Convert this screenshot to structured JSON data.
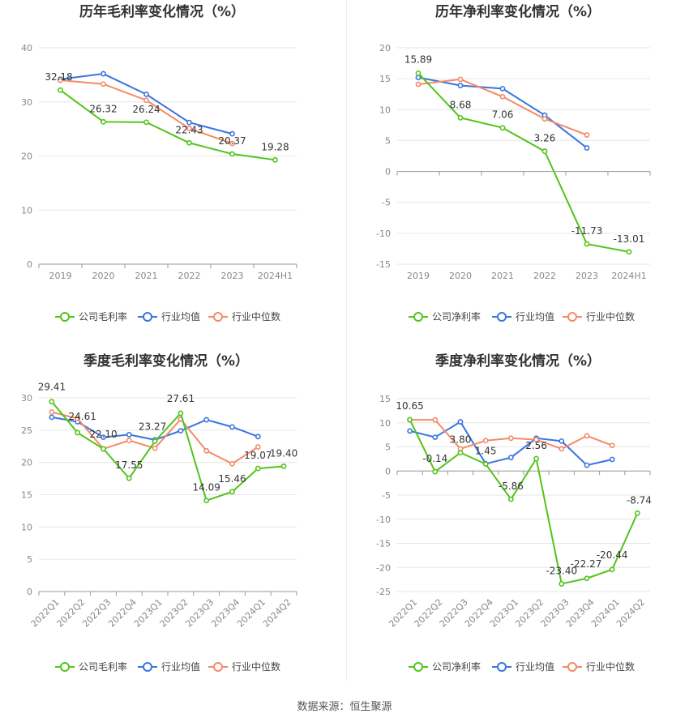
{
  "colors": {
    "company": "#52c41a",
    "industry_avg": "#3a75e0",
    "industry_median": "#f28b68",
    "grid": "#e6e6e6",
    "axis": "#999999"
  },
  "legend": {
    "gross_company": "公司毛利率",
    "net_company": "公司净利率",
    "industry_avg": "行业均值",
    "industry_median": "行业中位数"
  },
  "source_text": "数据来源：恒生聚源",
  "chart_data": [
    {
      "id": "annual-gross",
      "type": "line",
      "title": "历年毛利率变化情况（%）",
      "categories": [
        "2019",
        "2020",
        "2021",
        "2022",
        "2023",
        "2024H1"
      ],
      "ylim": [
        0,
        40
      ],
      "yticks": [
        0,
        10,
        20,
        30,
        40
      ],
      "grid": true,
      "legend_position": "bottom",
      "series": [
        {
          "name": "公司毛利率",
          "values": [
            32.18,
            26.32,
            26.24,
            22.43,
            20.37,
            19.28
          ],
          "labels": true
        },
        {
          "name": "行业均值",
          "values": [
            34.2,
            35.2,
            31.4,
            26.2,
            24.1,
            null
          ]
        },
        {
          "name": "行业中位数",
          "values": [
            34.0,
            33.3,
            30.3,
            25.1,
            22.3,
            null
          ]
        }
      ]
    },
    {
      "id": "annual-net",
      "type": "line",
      "title": "历年净利率变化情况（%）",
      "categories": [
        "2019",
        "2020",
        "2021",
        "2022",
        "2023",
        "2024H1"
      ],
      "ylim": [
        -15,
        20
      ],
      "yticks": [
        -15,
        -10,
        -5,
        0,
        5,
        10,
        15,
        20
      ],
      "grid": true,
      "legend_position": "bottom",
      "series": [
        {
          "name": "公司净利率",
          "values": [
            15.89,
            8.68,
            7.06,
            3.26,
            -11.73,
            -13.01
          ],
          "labels": true
        },
        {
          "name": "行业均值",
          "values": [
            15.2,
            13.9,
            13.4,
            9.1,
            3.8,
            null
          ]
        },
        {
          "name": "行业中位数",
          "values": [
            14.1,
            14.9,
            12.1,
            8.5,
            5.9,
            null
          ]
        }
      ]
    },
    {
      "id": "quarterly-gross",
      "type": "line",
      "title": "季度毛利率变化情况（%）",
      "categories": [
        "2022Q1",
        "2022Q2",
        "2022Q3",
        "2022Q4",
        "2023Q1",
        "2023Q2",
        "2023Q3",
        "2023Q4",
        "2024Q1",
        "2024Q2"
      ],
      "ylim": [
        0,
        30
      ],
      "yticks": [
        0,
        5,
        10,
        15,
        20,
        25,
        30
      ],
      "grid": true,
      "legend_position": "bottom",
      "series": [
        {
          "name": "公司毛利率",
          "values": [
            29.41,
            24.61,
            22.1,
            17.55,
            23.27,
            27.61,
            14.09,
            15.46,
            19.07,
            19.4
          ],
          "labels": true
        },
        {
          "name": "行业均值",
          "values": [
            27.0,
            26.3,
            23.9,
            24.3,
            23.5,
            24.9,
            26.6,
            25.5,
            24.0,
            null
          ]
        },
        {
          "name": "行业中位数",
          "values": [
            27.8,
            26.8,
            22.1,
            23.4,
            22.2,
            26.7,
            21.8,
            19.8,
            22.4,
            null
          ]
        }
      ]
    },
    {
      "id": "quarterly-net",
      "type": "line",
      "title": "季度净利率变化情况（%）",
      "categories": [
        "2022Q1",
        "2022Q2",
        "2022Q3",
        "2022Q4",
        "2023Q1",
        "2023Q2",
        "2023Q3",
        "2023Q4",
        "2024Q1",
        "2024Q2"
      ],
      "ylim": [
        -25,
        15
      ],
      "yticks": [
        -25,
        -20,
        -15,
        -10,
        -5,
        0,
        5,
        10,
        15
      ],
      "grid": true,
      "legend_position": "bottom",
      "series": [
        {
          "name": "公司净利率",
          "values": [
            10.65,
            -0.14,
            3.8,
            1.45,
            -5.86,
            2.56,
            -23.4,
            -22.27,
            -20.44,
            -8.74
          ],
          "labels": true
        },
        {
          "name": "行业均值",
          "values": [
            8.3,
            7.0,
            10.2,
            1.5,
            2.8,
            6.8,
            6.2,
            1.2,
            2.4,
            null
          ]
        },
        {
          "name": "行业中位数",
          "values": [
            10.6,
            10.6,
            4.6,
            6.3,
            6.8,
            6.5,
            4.6,
            7.3,
            5.3,
            null
          ]
        }
      ]
    }
  ]
}
